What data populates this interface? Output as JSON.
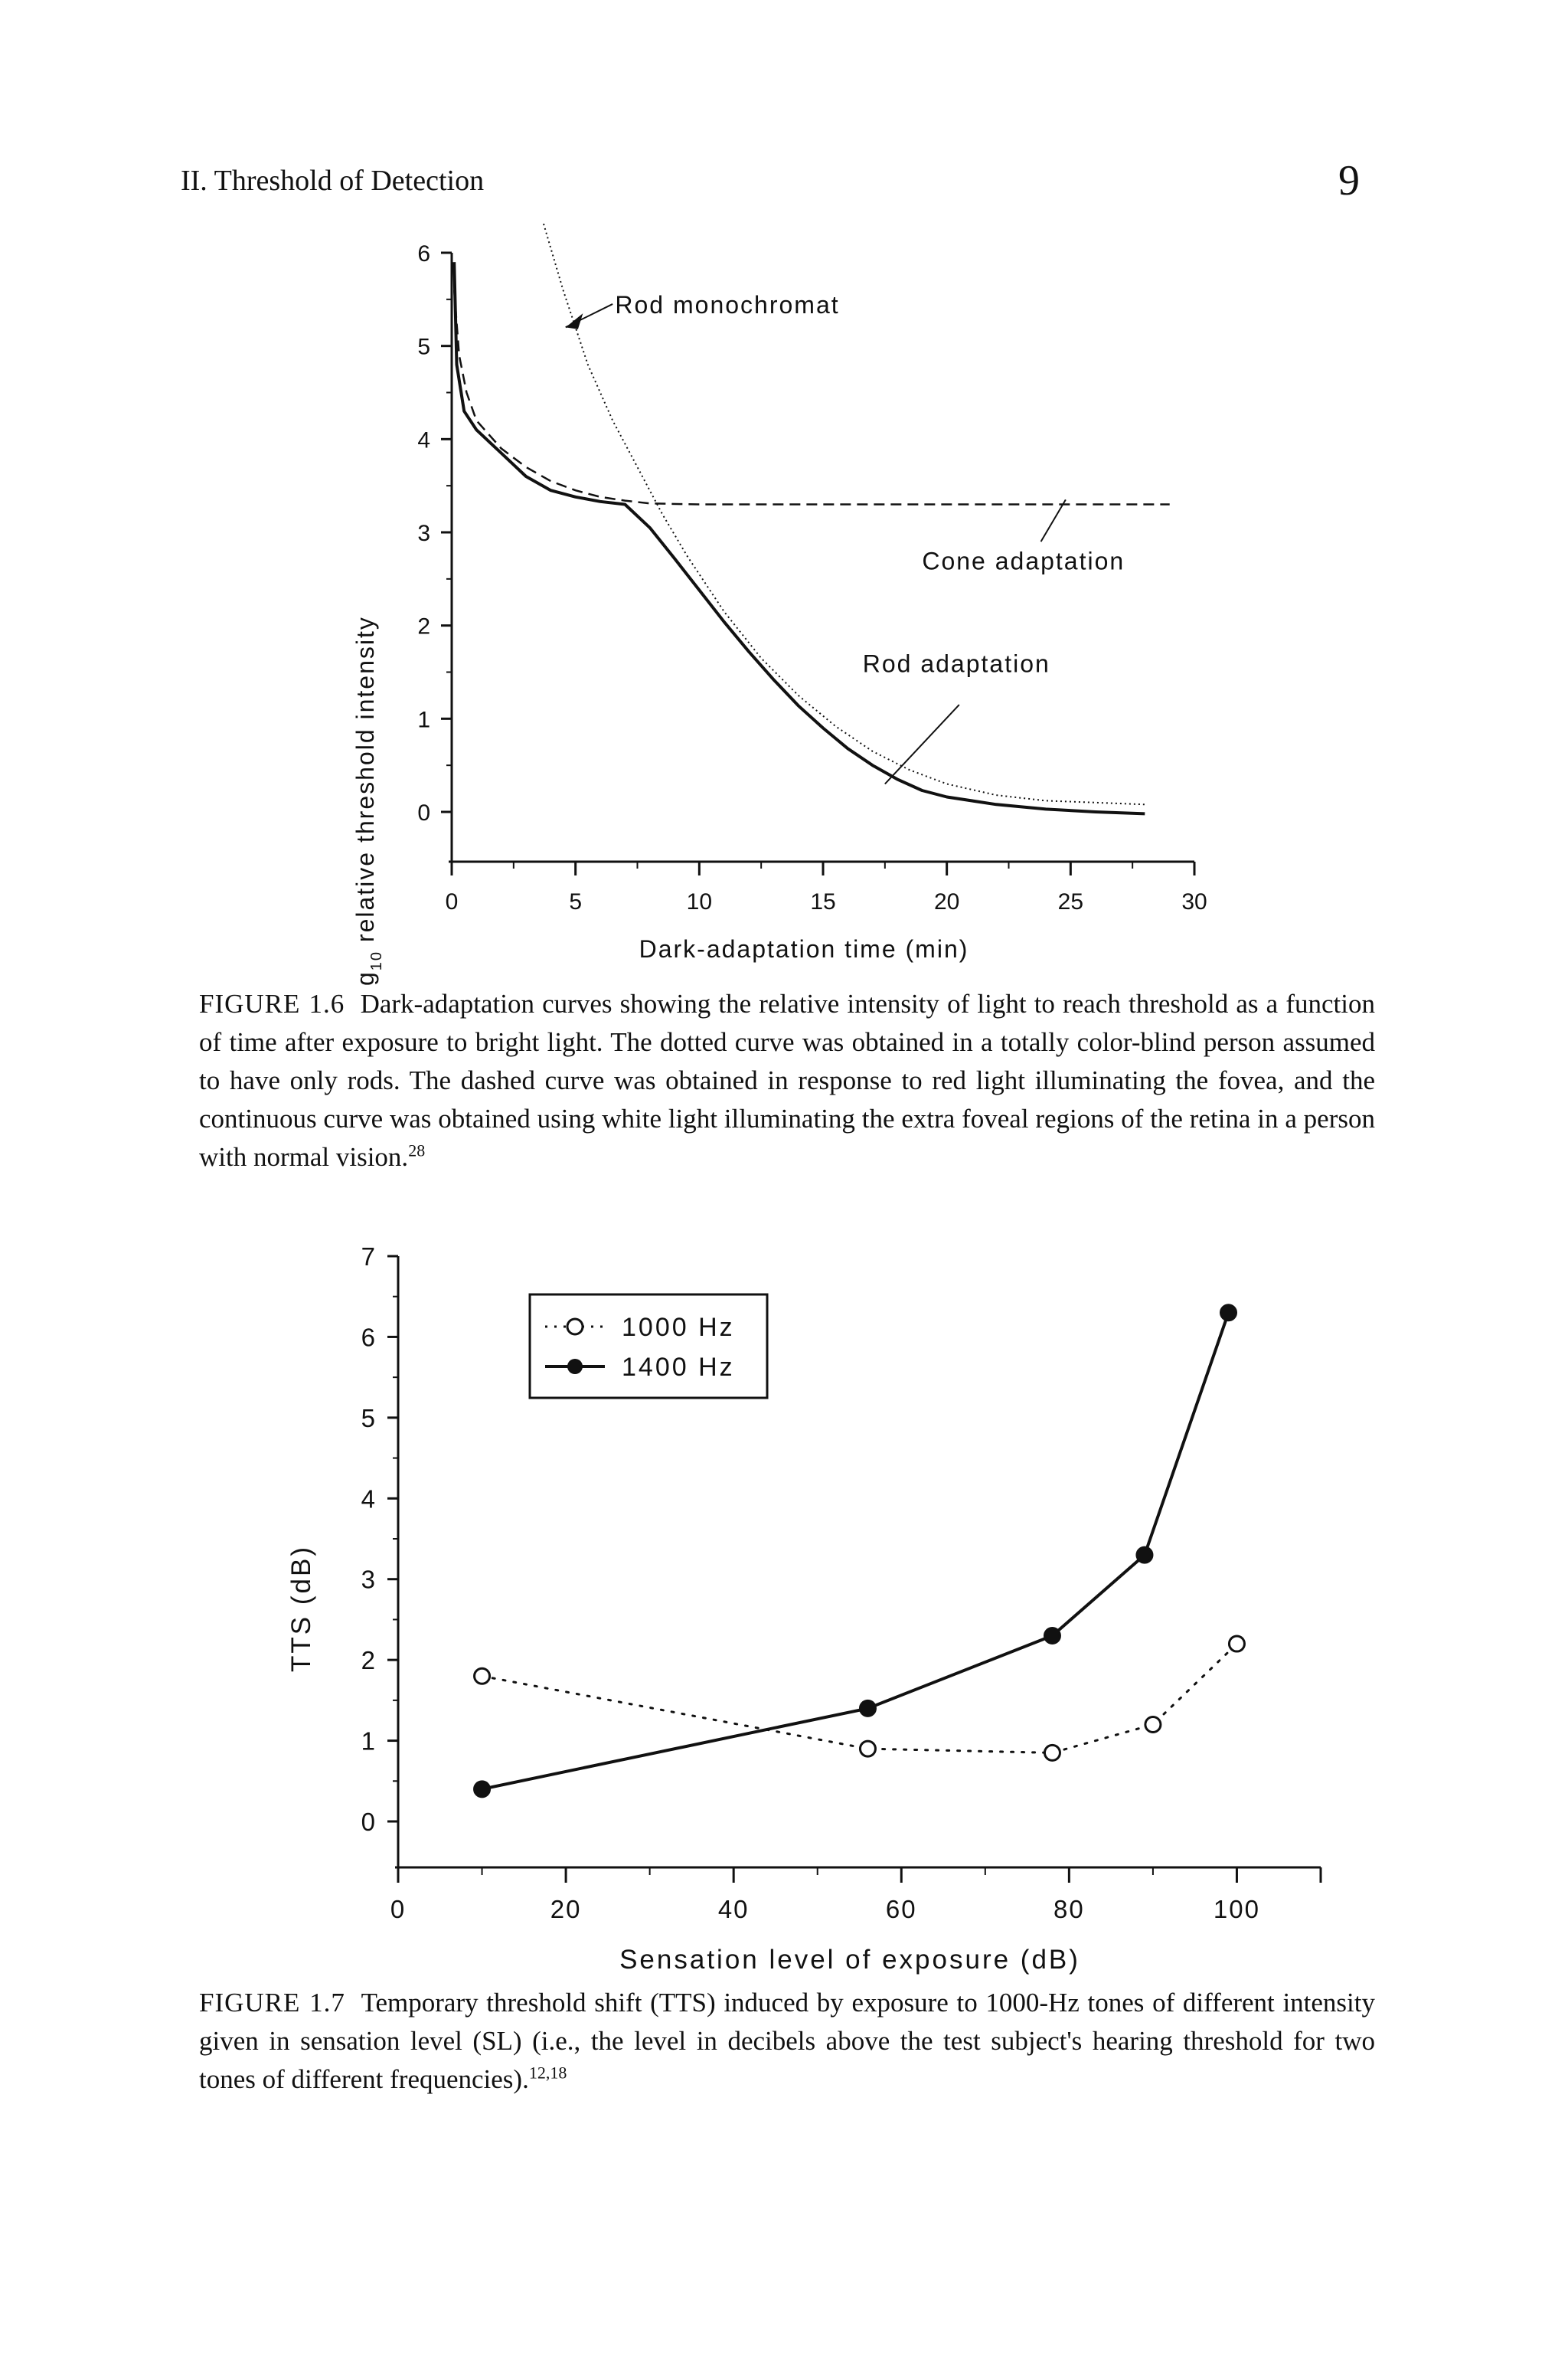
{
  "header": {
    "running_head": "II. Threshold of Detection",
    "page_number": "9"
  },
  "figure_1": {
    "caption_label": "FIGURE 1.6",
    "caption_text": "Dark-adaptation curves showing the relative intensity of light to reach threshold as a function of time after exposure to bright light. The dotted curve was obtained in a totally color-blind person assumed to have only rods. The dashed curve was obtained in response to red light illuminating the fovea, and the continuous curve was obtained using white light illuminating the extra foveal regions of the retina in a person with normal vision.",
    "caption_ref": "28"
  },
  "figure_2": {
    "caption_label": "FIGURE 1.7",
    "caption_text": "Temporary threshold shift (TTS) induced by exposure to 1000-Hz tones of different intensity given in sensation level (SL) (i.e., the level in decibels above the test subject's hearing threshold for two tones of different frequencies).",
    "caption_ref": "12,18"
  },
  "chart_data": [
    {
      "type": "line",
      "xlabel": "Dark-adaptation time (min)",
      "ylabel_prefix": "log",
      "ylabel_sub": "10",
      "ylabel_suffix": " relative threshold intensity",
      "xlim": [
        0,
        30
      ],
      "ylim": [
        0,
        6
      ],
      "x_ticks": [
        "0",
        "5",
        "10",
        "15",
        "20",
        "25",
        "30"
      ],
      "y_ticks": [
        "0",
        "1",
        "2",
        "3",
        "4",
        "5",
        "6"
      ],
      "annotations": {
        "rod_monochromat": "Rod monochromat",
        "cone_adaptation": "Cone adaptation",
        "rod_adaptation": "Rod adaptation"
      },
      "series": [
        {
          "style": "solid",
          "x": [
            0.1,
            0.2,
            0.5,
            1,
            2,
            3,
            4,
            5,
            6,
            7,
            8,
            9,
            10,
            11,
            12,
            13,
            14,
            15,
            16,
            17,
            18,
            19,
            20,
            22,
            24,
            26,
            28
          ],
          "y": [
            5.9,
            4.8,
            4.3,
            4.1,
            3.85,
            3.6,
            3.45,
            3.38,
            3.33,
            3.3,
            3.05,
            2.72,
            2.38,
            2.04,
            1.72,
            1.42,
            1.14,
            0.9,
            0.68,
            0.5,
            0.35,
            0.23,
            0.16,
            0.08,
            0.03,
            0.0,
            -0.02
          ]
        },
        {
          "style": "dashed",
          "x": [
            0.1,
            0.3,
            0.6,
            1,
            2,
            3,
            4,
            5,
            6,
            7,
            8,
            10,
            14,
            18,
            22,
            26,
            29
          ],
          "y": [
            5.6,
            4.9,
            4.5,
            4.2,
            3.9,
            3.7,
            3.55,
            3.45,
            3.38,
            3.34,
            3.31,
            3.3,
            3.3,
            3.3,
            3.3,
            3.3,
            3.3
          ]
        },
        {
          "style": "dotted",
          "x": [
            3.5,
            4.5,
            5.5,
            6.5,
            7.5,
            8.5,
            9.5,
            11,
            12.5,
            14,
            15.5,
            17,
            18.5,
            20,
            22,
            24,
            26,
            28
          ],
          "y": [
            6.5,
            5.6,
            4.8,
            4.2,
            3.7,
            3.2,
            2.75,
            2.15,
            1.65,
            1.25,
            0.92,
            0.65,
            0.45,
            0.3,
            0.18,
            0.12,
            0.1,
            0.08
          ]
        }
      ]
    },
    {
      "type": "line",
      "xlabel": "Sensation level of exposure (dB)",
      "ylabel": "TTS (dB)",
      "xlim": [
        0,
        110
      ],
      "ylim": [
        0,
        7
      ],
      "x_ticks": [
        "0",
        "20",
        "40",
        "60",
        "80",
        "100"
      ],
      "y_ticks": [
        "0",
        "1",
        "2",
        "3",
        "4",
        "5",
        "6",
        "7"
      ],
      "legend_position": "top-left",
      "series": [
        {
          "name": "1000 Hz",
          "marker": "open-circle",
          "style": "dotted",
          "x": [
            10,
            56,
            78,
            90,
            100
          ],
          "y": [
            1.8,
            0.9,
            0.85,
            1.2,
            2.2
          ]
        },
        {
          "name": "1400 Hz",
          "marker": "filled-circle",
          "style": "solid",
          "x": [
            10,
            56,
            78,
            89,
            99
          ],
          "y": [
            0.4,
            1.4,
            2.3,
            3.3,
            6.3
          ]
        }
      ]
    }
  ]
}
